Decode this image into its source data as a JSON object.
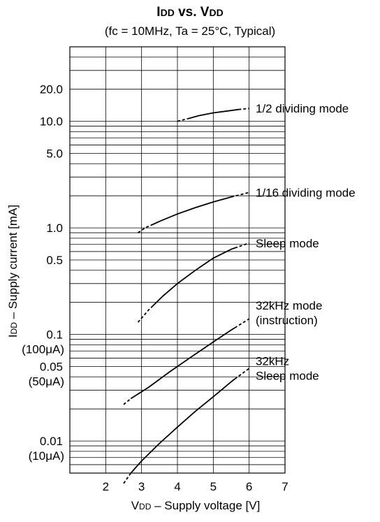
{
  "title": {
    "p1": "I",
    "p2": "DD",
    "p3": " vs. V",
    "p4": "DD"
  },
  "subtitle": "(fc = 10MHz, Ta = 25°C, Typical)",
  "ylabel": {
    "p1": "I",
    "p2": "DD",
    "p3": " – Supply current  [mA]"
  },
  "xlabel": {
    "p1": "V",
    "p2": "DD",
    "p3": " – Supply voltage  [V]"
  },
  "chart_data": {
    "type": "line",
    "x_scale": "linear",
    "y_scale": "log",
    "xlim": [
      1,
      7
    ],
    "ylim": [
      0.005,
      50
    ],
    "grid": true,
    "x_ticks": [
      {
        "value": 2,
        "label": "2"
      },
      {
        "value": 3,
        "label": "3"
      },
      {
        "value": 4,
        "label": "4"
      },
      {
        "value": 5,
        "label": "5"
      },
      {
        "value": 6,
        "label": "6"
      },
      {
        "value": 7,
        "label": "7"
      }
    ],
    "y_ticks": [
      {
        "value": 20,
        "label": "20.0"
      },
      {
        "value": 10,
        "label": "10.0"
      },
      {
        "value": 5,
        "label": "5.0"
      },
      {
        "value": 1,
        "label": "1.0"
      },
      {
        "value": 0.5,
        "label": "0.5"
      },
      {
        "value": 0.1,
        "label": "0.1",
        "label2": "(100μA)"
      },
      {
        "value": 0.05,
        "label": "0.05",
        "label2": "(50μA)"
      },
      {
        "value": 0.01,
        "label": "0.01",
        "label2": "(10μA)"
      }
    ],
    "series": [
      {
        "name": "1/2 dividing mode",
        "x": [
          4.0,
          4.3,
          4.6,
          5.0,
          5.4,
          5.7,
          6.0
        ],
        "y": [
          10.0,
          10.6,
          11.3,
          12.0,
          12.5,
          12.9,
          13.2
        ],
        "dashed_ends": [
          4.3,
          5.7
        ],
        "label_lines": [
          "1/2 dividing mode"
        ]
      },
      {
        "name": "1/16 dividing mode",
        "x": [
          2.9,
          3.1,
          3.5,
          4.0,
          4.5,
          5.0,
          5.5,
          6.0
        ],
        "y": [
          0.9,
          1.0,
          1.15,
          1.35,
          1.55,
          1.75,
          1.95,
          2.15
        ],
        "dashed_ends": [
          3.3,
          5.5
        ],
        "label_lines": [
          "1/16 dividing mode"
        ]
      },
      {
        "name": "Sleep mode",
        "x": [
          2.9,
          3.2,
          3.6,
          4.0,
          4.5,
          5.0,
          5.5,
          6.0
        ],
        "y": [
          0.13,
          0.17,
          0.23,
          0.3,
          0.4,
          0.52,
          0.63,
          0.72
        ],
        "dashed_ends": [
          3.3,
          5.6
        ],
        "label_lines": [
          "Sleep mode"
        ]
      },
      {
        "name": "32kHz mode (instruction)",
        "x": [
          2.5,
          2.7,
          3.2,
          3.8,
          4.4,
          5.0,
          5.5,
          6.0
        ],
        "y": [
          0.022,
          0.025,
          0.032,
          0.045,
          0.062,
          0.085,
          0.11,
          0.14
        ],
        "dashed_ends": [
          2.7,
          5.6
        ],
        "label_lines": [
          "32kHz mode",
          "(instruction)"
        ]
      },
      {
        "name": "32kHz Sleep mode",
        "x": [
          2.5,
          2.7,
          3.0,
          3.5,
          4.0,
          4.5,
          5.0,
          5.5,
          6.0
        ],
        "y": [
          0.004,
          0.005,
          0.0065,
          0.0095,
          0.0135,
          0.019,
          0.026,
          0.036,
          0.048
        ],
        "dashed_ends": [
          2.7,
          5.6
        ],
        "label_lines": [
          "32kHz",
          "Sleep mode"
        ]
      }
    ]
  }
}
